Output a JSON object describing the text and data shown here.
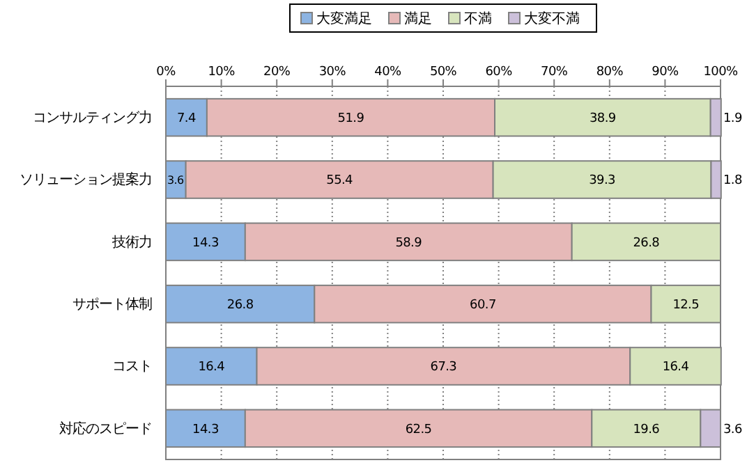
{
  "chart_data": {
    "type": "bar",
    "orientation": "horizontal",
    "stacked": true,
    "data_labels": true,
    "grid": "x",
    "legend": "top",
    "categories": [
      "コンサルティング力",
      "ソリューション提案力",
      "技術力",
      "サポート体制",
      "コスト",
      "対応のスピード"
    ],
    "xlim": [
      0,
      100
    ],
    "xticks": [
      {
        "value": 0,
        "label": "0%"
      },
      {
        "value": 10,
        "label": "10%"
      },
      {
        "value": 20,
        "label": "20%"
      },
      {
        "value": 30,
        "label": "30%"
      },
      {
        "value": 40,
        "label": "40%"
      },
      {
        "value": 50,
        "label": "50%"
      },
      {
        "value": 60,
        "label": "60%"
      },
      {
        "value": 70,
        "label": "70%"
      },
      {
        "value": 80,
        "label": "80%"
      },
      {
        "value": 90,
        "label": "90%"
      },
      {
        "value": 100,
        "label": "100%"
      }
    ],
    "series": [
      {
        "name": "大変満足",
        "color": "#8db4e2",
        "values": [
          7.4,
          3.6,
          14.3,
          26.8,
          16.4,
          14.3
        ]
      },
      {
        "name": "満足",
        "color": "#e6b9b8",
        "values": [
          51.9,
          55.4,
          58.9,
          60.7,
          67.3,
          62.5
        ]
      },
      {
        "name": "不満",
        "color": "#d7e4bd",
        "values": [
          38.9,
          39.3,
          26.8,
          12.5,
          16.4,
          19.6
        ]
      },
      {
        "name": "大変不満",
        "color": "#ccc0da",
        "values": [
          1.9,
          1.8,
          null,
          null,
          null,
          3.6
        ]
      }
    ]
  }
}
